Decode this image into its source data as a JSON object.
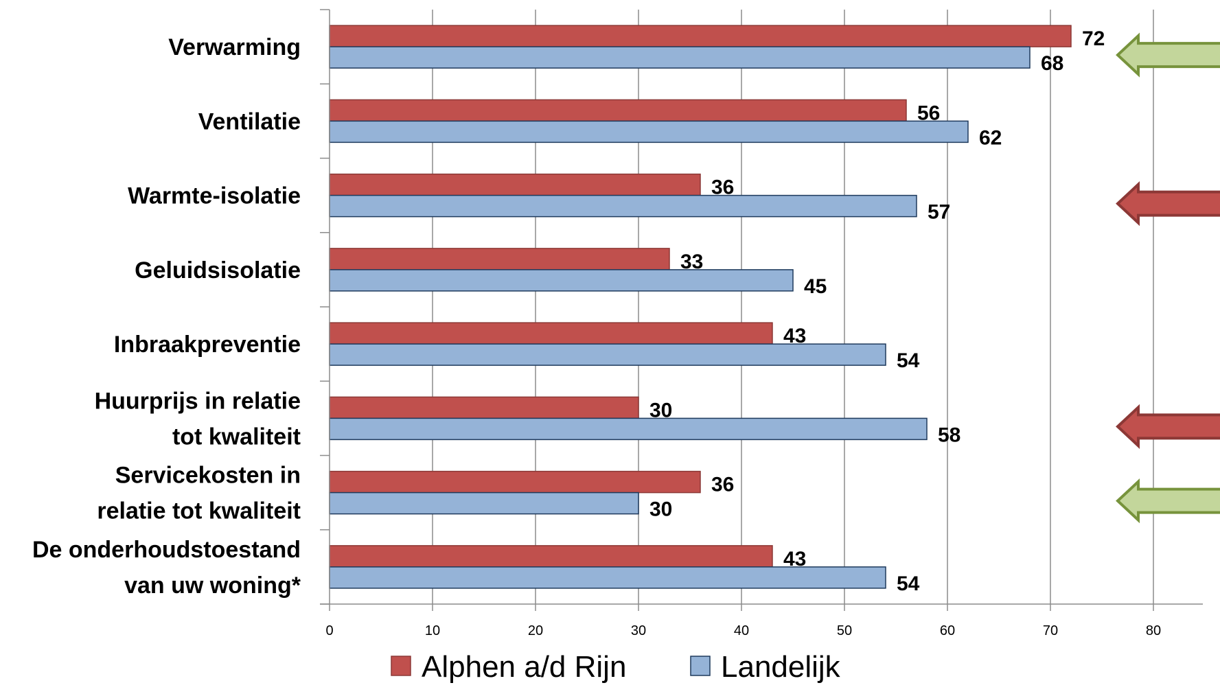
{
  "chart_data": {
    "type": "bar",
    "orientation": "horizontal",
    "categories": [
      [
        "Verwarming"
      ],
      [
        "Ventilatie"
      ],
      [
        "Warmte-isolatie"
      ],
      [
        "Geluidsisolatie"
      ],
      [
        "Inbraakpreventie"
      ],
      [
        "Huurprijs in relatie",
        "tot kwaliteit"
      ],
      [
        "Servicekosten in",
        "relatie tot kwaliteit"
      ],
      [
        "De onderhoudstoestand",
        "van uw woning*"
      ]
    ],
    "series": [
      {
        "name": "Alphen a/d Rijn",
        "color": "#c0504d",
        "values": [
          72,
          56,
          36,
          33,
          43,
          30,
          36,
          43
        ]
      },
      {
        "name": "Landelijk",
        "color": "#95b3d7",
        "values": [
          68,
          62,
          57,
          45,
          54,
          58,
          30,
          54
        ]
      }
    ],
    "xlim": [
      0,
      80
    ],
    "xticks": [
      0,
      10,
      20,
      30,
      40,
      50,
      60,
      70,
      80
    ],
    "grid": true,
    "legend_position": "bottom",
    "title": "",
    "xlabel": "",
    "ylabel": "",
    "annotations": [
      {
        "type": "arrow",
        "category_index": 0,
        "color": "green",
        "direction": "left"
      },
      {
        "type": "arrow",
        "category_index": 2,
        "color": "red",
        "direction": "left"
      },
      {
        "type": "arrow",
        "category_index": 5,
        "color": "red",
        "direction": "left"
      },
      {
        "type": "arrow",
        "category_index": 6,
        "color": "green",
        "direction": "left"
      }
    ]
  }
}
